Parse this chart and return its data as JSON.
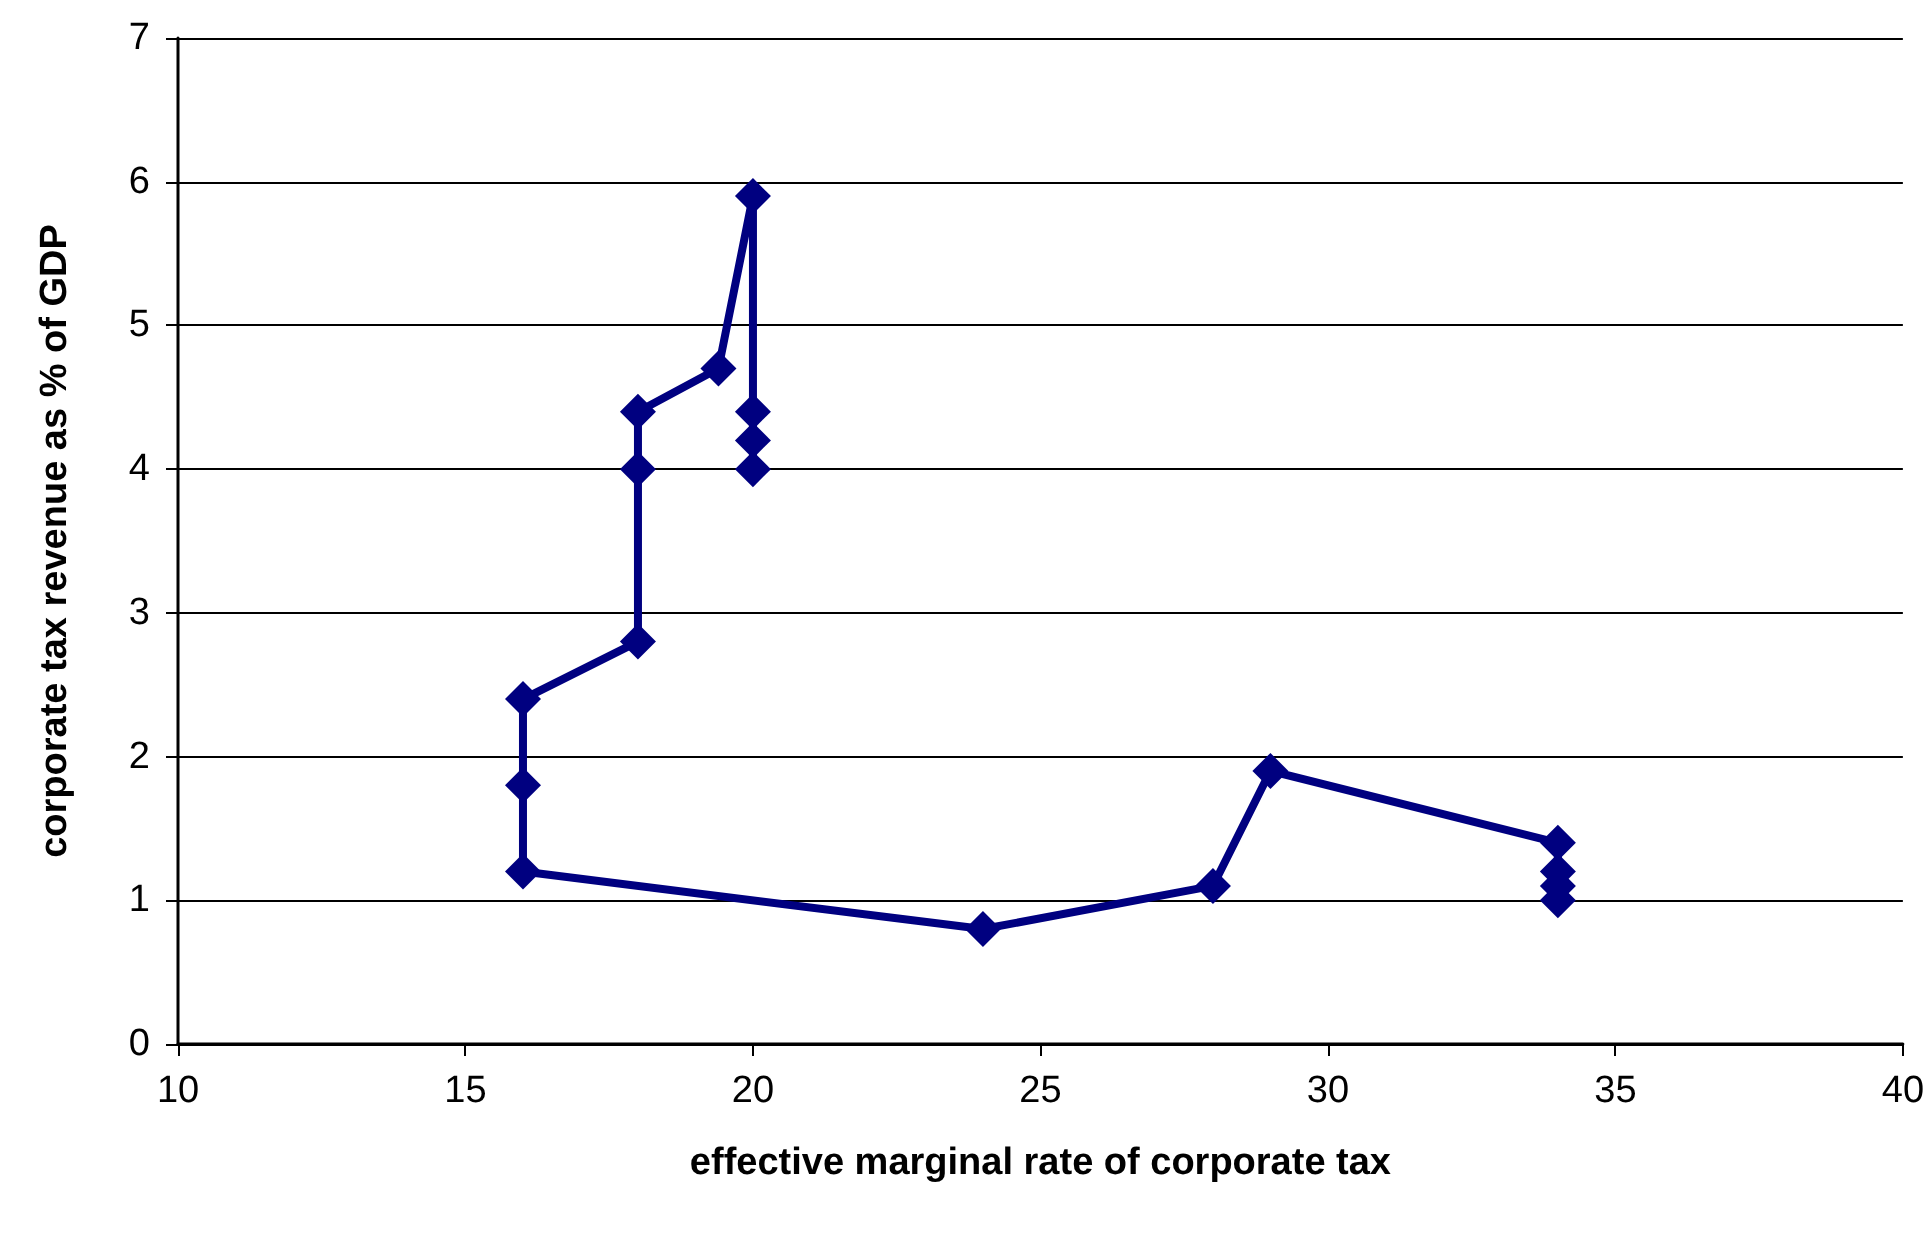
{
  "chart_data": {
    "type": "line",
    "xlabel": "effective marginal rate of corporate tax",
    "ylabel": "corporate tax revenue as % of GDP",
    "x": [
      34,
      34,
      34,
      34,
      29,
      28,
      24,
      16,
      16,
      16,
      18,
      18,
      18,
      19.4,
      20,
      20,
      20,
      20
    ],
    "series": [
      {
        "color": "#000080",
        "values": [
          1.0,
          1.1,
          1.2,
          1.4,
          1.9,
          1.1,
          0.8,
          1.2,
          1.8,
          2.4,
          2.8,
          4.0,
          4.4,
          4.7,
          5.9,
          4.4,
          4.2,
          4.0
        ]
      }
    ],
    "xlim": [
      10,
      40
    ],
    "xticks": [
      10,
      15,
      20,
      25,
      30,
      35,
      40
    ],
    "ylim": [
      0,
      7
    ],
    "yticks": [
      0,
      1,
      2,
      3,
      4,
      5,
      6,
      7
    ],
    "grid": "y",
    "marker": "diamond",
    "line_style": "solid"
  }
}
